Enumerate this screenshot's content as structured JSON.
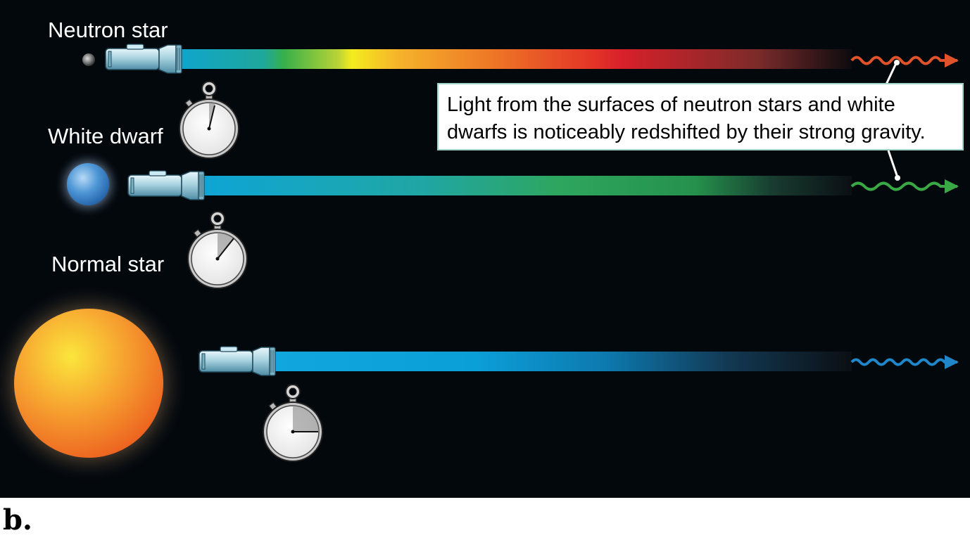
{
  "labels": {
    "neutron_star": "Neutron star",
    "white_dwarf": "White dwarf",
    "normal_star": "Normal star"
  },
  "callout": {
    "line1": "Light from the surfaces of neutron stars and white",
    "line2": "dwarfs is noticeably redshifted by their strong gravity."
  },
  "panel_letter": "b.",
  "colors": {
    "background": "#03080d",
    "neutron_wave": "#e0532a",
    "white_dwarf_wave": "#3aa845",
    "normal_wave": "#1f86c9",
    "flashlight": "#a9d3e0",
    "white_dwarf_body": "#3f86c9",
    "normal_star_body": "#f07a22"
  },
  "icons": [
    "flashlight-icon",
    "stopwatch-icon",
    "wave-arrow-icon"
  ]
}
